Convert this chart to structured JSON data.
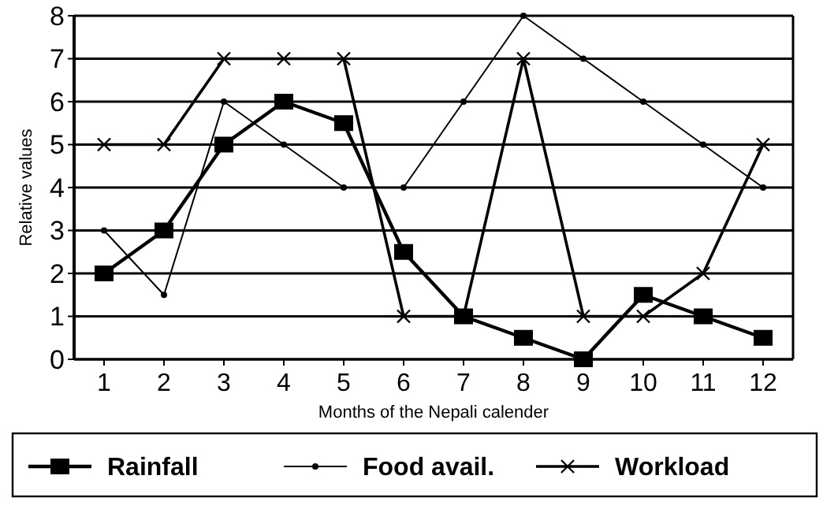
{
  "chart_data": {
    "type": "line",
    "xlabel": "Months of the Nepali calender",
    "ylabel": "Relative values",
    "categories": [
      "1",
      "2",
      "3",
      "4",
      "5",
      "6",
      "7",
      "8",
      "9",
      "10",
      "11",
      "12"
    ],
    "series": [
      {
        "name": "Rainfall",
        "color": "#000000",
        "marker": "square",
        "values": [
          2,
          3,
          5,
          6,
          5.5,
          2.5,
          1,
          0.5,
          0,
          1.5,
          1,
          0.5
        ]
      },
      {
        "name": "Food avail.",
        "color": "#000000",
        "marker": "circle",
        "values": [
          3,
          1.5,
          6,
          5,
          4,
          4,
          6,
          8,
          7,
          6,
          5,
          4
        ]
      },
      {
        "name": "Workload",
        "color": "#000000",
        "marker": "cross",
        "values": [
          5,
          5,
          7,
          7,
          7,
          1,
          1,
          7,
          1,
          1,
          2,
          5
        ]
      }
    ],
    "ylim": [
      0,
      8
    ],
    "yticks": [
      0,
      1,
      2,
      3,
      4,
      5,
      6,
      7,
      8
    ],
    "grid": "y",
    "legend": "bottom",
    "line_style": "solid"
  }
}
